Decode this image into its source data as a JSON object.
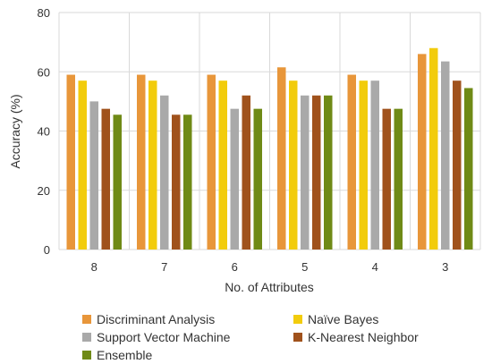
{
  "chart_data": {
    "type": "bar",
    "xlabel": "No. of Attributes",
    "ylabel": "Accuracy (%)",
    "ylim": [
      0,
      80
    ],
    "yticks": [
      0,
      20,
      40,
      60,
      80
    ],
    "grid": true,
    "legend_position": "bottom",
    "categories": [
      "8",
      "7",
      "6",
      "5",
      "4",
      "3"
    ],
    "series": [
      {
        "name": "Discriminant Analysis",
        "color": "#E8963A",
        "values": [
          59,
          59,
          59,
          61.5,
          59,
          66
        ]
      },
      {
        "name": "Naïve Bayes",
        "color": "#F2CC0C",
        "values": [
          57,
          57,
          57,
          57,
          57,
          68
        ]
      },
      {
        "name": "Support Vector Machine",
        "color": "#A9A9A9",
        "values": [
          50,
          52,
          47.5,
          52,
          57,
          63.5
        ]
      },
      {
        "name": "K-Nearest Neighbor",
        "color": "#A0521C",
        "values": [
          47.5,
          45.5,
          52,
          52,
          47.5,
          57
        ]
      },
      {
        "name": "Ensemble",
        "color": "#6F8A16",
        "values": [
          45.5,
          45.5,
          47.5,
          52,
          47.5,
          54.5
        ]
      }
    ]
  }
}
